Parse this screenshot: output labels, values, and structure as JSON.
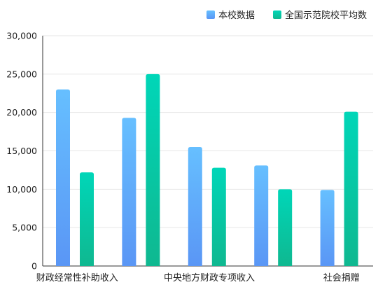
{
  "colors": {
    "series_1_top": "#66bfff",
    "series_1_bottom": "#5a96f5",
    "series_2_top": "#00d6b8",
    "series_2_bottom": "#0fb890",
    "axis": "#333333",
    "grid": "#e6e6e6",
    "text": "#222222"
  },
  "chart_data": {
    "type": "bar",
    "title": "",
    "xlabel": "",
    "ylabel": "",
    "ylim": [
      0,
      30000
    ],
    "yticks": [
      0,
      5000,
      10000,
      15000,
      20000,
      25000,
      30000
    ],
    "ytick_labels": [
      "0",
      "5,000",
      "10,000",
      "15,000",
      "20,000",
      "25,000",
      "30,000"
    ],
    "grid": true,
    "legend_position": "top-right",
    "categories": [
      "财政经常性补助收入",
      "",
      "中央地方财政专项收入",
      "",
      "社会捐赠"
    ],
    "series": [
      {
        "name": "本校数据",
        "values": [
          23000,
          19300,
          15500,
          13100,
          9900
        ]
      },
      {
        "name": "全国示范院校平均数",
        "values": [
          12200,
          25000,
          12800,
          10000,
          20100
        ]
      }
    ]
  }
}
